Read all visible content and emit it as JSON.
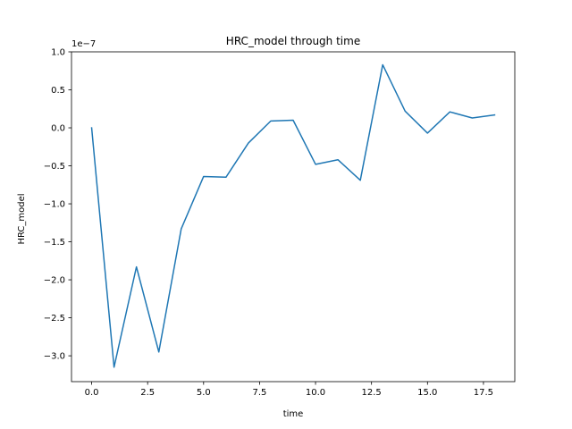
{
  "chart_data": {
    "type": "line",
    "title": "HRC_model through time",
    "xlabel": "time",
    "ylabel": "HRC_model",
    "y_offset_label": "1e−7",
    "xlim": [
      -0.9,
      18.9
    ],
    "ylim": [
      -3.34e-07,
      1e-07
    ],
    "grid": false,
    "x_ticks": [
      0,
      2.5,
      5,
      7.5,
      10,
      12.5,
      15,
      17.5
    ],
    "x_tick_labels": [
      "0.0",
      "2.5",
      "5.0",
      "7.5",
      "10.0",
      "12.5",
      "15.0",
      "17.5"
    ],
    "y_ticks": [
      1e-07,
      5e-08,
      0,
      -5e-08,
      -1e-07,
      -1.5e-07,
      -2e-07,
      -2.5e-07,
      -3e-07
    ],
    "y_tick_labels": [
      "1.0",
      "0.5",
      "0.0",
      "−0.5",
      "−1.0",
      "−1.5",
      "−2.0",
      "−2.5",
      "−3.0"
    ],
    "series": [
      {
        "color": "#1f77b4",
        "x": [
          0,
          1,
          2,
          3,
          4,
          5,
          6,
          7,
          8,
          9,
          10,
          11,
          12,
          13,
          14,
          15,
          16,
          17,
          18
        ],
        "y": [
          0.0,
          -3.15e-07,
          -1.83e-07,
          -2.95e-07,
          -1.33e-07,
          -6.4e-08,
          -6.5e-08,
          -2e-08,
          9e-09,
          1e-08,
          -4.8e-08,
          -4.2e-08,
          -6.9e-08,
          8.3e-08,
          2.2e-08,
          -7e-09,
          2.1e-08,
          1.3e-08,
          1.7e-08
        ]
      }
    ]
  }
}
